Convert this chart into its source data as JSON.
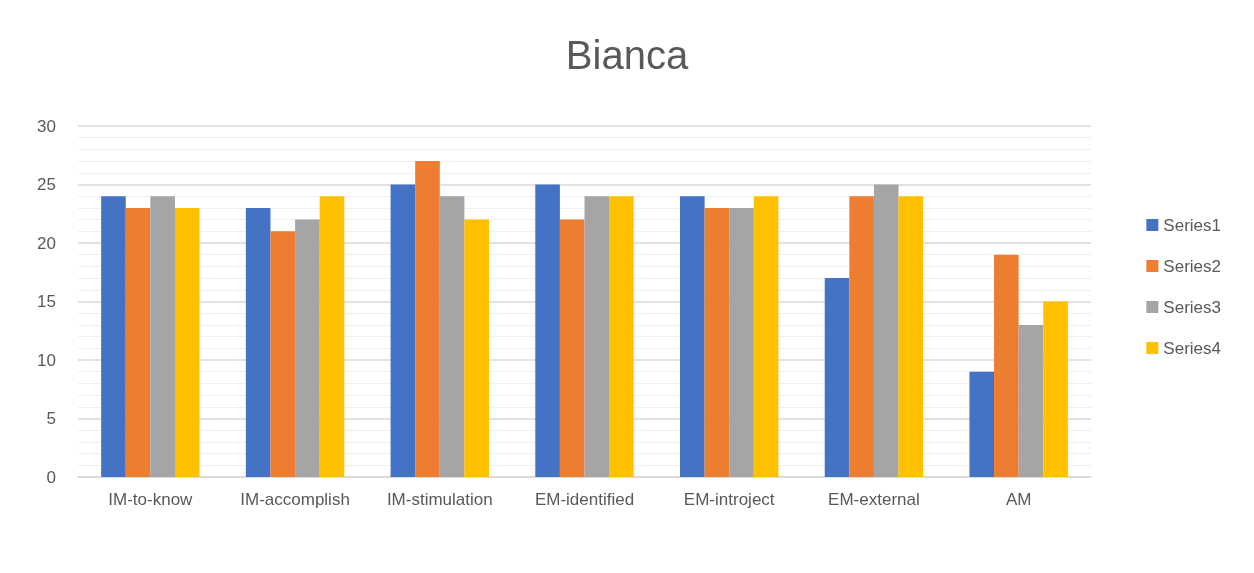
{
  "chart_data": {
    "type": "bar",
    "title": "Bianca",
    "categories": [
      "IM-to-know",
      "IM-accomplish",
      "IM-stimulation",
      "EM-identified",
      "EM-introject",
      "EM-external",
      "AM"
    ],
    "series": [
      {
        "name": "Series1",
        "color": "#4472c4",
        "values": [
          24,
          23,
          25,
          25,
          24,
          17,
          9
        ]
      },
      {
        "name": "Series2",
        "color": "#ed7d31",
        "values": [
          23,
          21,
          27,
          22,
          23,
          24,
          19
        ]
      },
      {
        "name": "Series3",
        "color": "#a5a5a5",
        "values": [
          24,
          22,
          24,
          24,
          23,
          25,
          13
        ]
      },
      {
        "name": "Series4",
        "color": "#ffc000",
        "values": [
          23,
          24,
          22,
          24,
          24,
          24,
          15
        ]
      }
    ],
    "ylim": [
      0,
      30
    ],
    "yticks": [
      0,
      5,
      10,
      15,
      20,
      25,
      30
    ],
    "grid": "y",
    "legend": "right"
  }
}
